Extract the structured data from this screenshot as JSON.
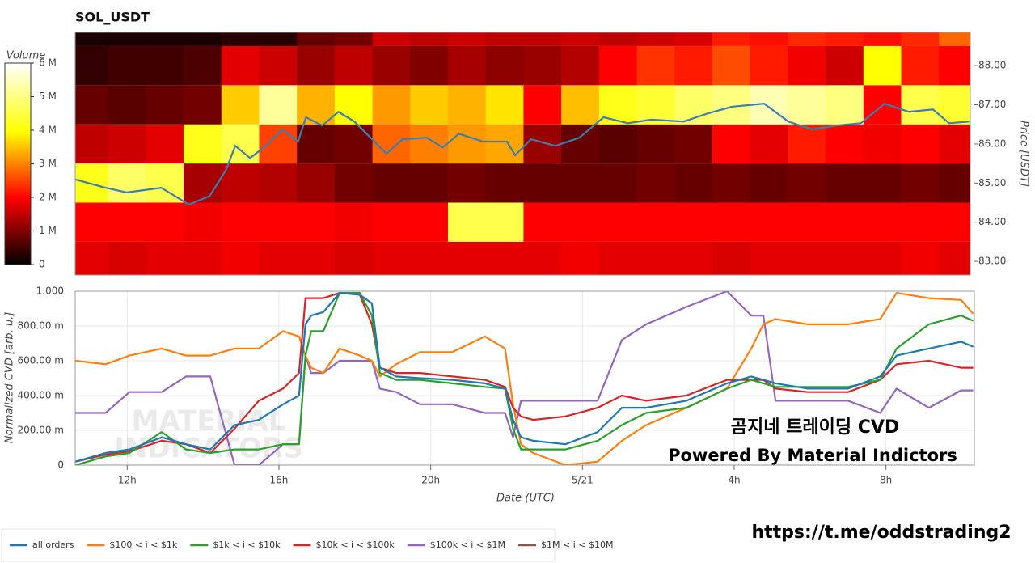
{
  "chart_data": [
    {
      "type": "heatmap",
      "title": "SOL_USDT",
      "colormap": "hot",
      "x_edges": [
        10.5,
        11.5,
        12.5,
        13.5,
        14.5,
        15.5,
        16.5,
        17.5,
        18.5,
        19.5,
        20.5,
        21.5,
        22.5,
        23.5,
        24.5,
        25.5,
        26.5,
        27.5,
        28.5,
        29.5,
        30.5,
        31.5,
        32.5,
        33.5,
        34.5
      ],
      "y_edges": [
        82.5,
        83.5,
        84.5,
        85.5,
        86.5,
        87.5,
        88.5,
        89.5
      ],
      "z": [
        [
          1.8,
          1.7,
          1.8,
          1.8,
          1.9,
          1.8,
          1.8,
          1.7,
          1.8,
          1.8,
          1.8,
          1.8,
          1.8,
          1.9,
          1.8,
          1.8,
          1.8,
          1.7,
          1.8,
          1.8,
          1.8,
          1.8,
          1.9,
          1.8
        ],
        [
          2.0,
          2.0,
          2.0,
          1.9,
          2.0,
          2.0,
          2.0,
          1.9,
          2.0,
          2.0,
          4.6,
          4.6,
          2.0,
          2.0,
          2.0,
          2.0,
          2.0,
          2.0,
          2.0,
          2.0,
          2.0,
          2.0,
          2.0,
          2.0
        ],
        [
          4.2,
          4.8,
          4.6,
          1.3,
          1.5,
          1.4,
          1.2,
          0.9,
          0.8,
          0.8,
          0.9,
          0.8,
          0.8,
          0.8,
          0.8,
          0.9,
          0.8,
          0.9,
          0.8,
          0.9,
          0.8,
          0.8,
          0.9,
          0.8
        ],
        [
          1.5,
          1.6,
          1.8,
          4.2,
          4.6,
          2.5,
          0.8,
          0.9,
          2.8,
          3.0,
          3.2,
          3.3,
          1.2,
          0.8,
          0.7,
          0.8,
          0.9,
          2.0,
          1.8,
          2.2,
          2.0,
          1.9,
          2.0,
          1.8
        ],
        [
          0.8,
          0.7,
          0.8,
          0.9,
          3.6,
          5.2,
          3.4,
          4.0,
          3.2,
          3.6,
          3.4,
          3.8,
          2.0,
          3.5,
          4.2,
          4.4,
          4.8,
          5.0,
          5.4,
          5.2,
          5.0,
          2.0,
          4.6,
          4.4
        ],
        [
          0.4,
          0.5,
          0.5,
          0.6,
          1.8,
          1.6,
          1.2,
          1.5,
          1.2,
          1.0,
          1.3,
          1.1,
          1.2,
          1.4,
          2.0,
          2.4,
          2.2,
          2.6,
          2.2,
          1.9,
          1.6,
          4.0,
          2.2,
          2.0
        ],
        [
          0.2,
          0.2,
          0.2,
          0.2,
          0.3,
          0.3,
          0.8,
          0.9,
          1.6,
          1.5,
          1.6,
          1.5,
          1.5,
          1.6,
          1.5,
          1.6,
          1.7,
          2.2,
          2.1,
          2.3,
          2.2,
          2.1,
          2.3,
          2.8
        ]
      ],
      "colorbar": {
        "title": "Volume",
        "lim": [
          0,
          6
        ],
        "ticks": [
          0,
          {
            "value": 1,
            "label": "1 M"
          },
          {
            "value": 2,
            "label": "2 M"
          },
          {
            "value": 3,
            "label": "3 M"
          },
          {
            "value": 4,
            "label": "4 M"
          },
          {
            "value": 5,
            "label": "5 M"
          },
          {
            "value": 6,
            "label": "6 M"
          }
        ]
      },
      "xlim": [
        10.63,
        34.33
      ],
      "ylim": [
        82.65,
        88.85
      ],
      "yticks": [
        {
          "value": 83,
          "label": "83.00"
        },
        {
          "value": 84,
          "label": "84.00"
        },
        {
          "value": 85,
          "label": "85.00"
        },
        {
          "value": 86,
          "label": "86.00"
        },
        {
          "value": 87,
          "label": "87.00"
        },
        {
          "value": 88,
          "label": "88.00"
        }
      ],
      "y_label": "Price [USDT]",
      "series": [
        {
          "color": "#3a7fb0",
          "x": [
            10.64,
            11.43,
            12,
            12.91,
            13.64,
            14.19,
            14.62,
            14.87,
            15.26,
            15.68,
            16.11,
            16.53,
            16.74,
            17.17,
            17.6,
            18.02,
            18.45,
            18.87,
            19.3,
            19.94,
            20.36,
            20.79,
            21.43,
            22.06,
            22.28,
            22.7,
            23.34,
            23.98,
            24.62,
            25.26,
            25.89,
            26.74,
            27.38,
            28.02,
            28.87,
            29.51,
            30.15,
            30.79,
            31.43,
            32.06,
            32.7,
            33.34,
            33.77,
            34.3
          ],
          "values": [
            85.09,
            84.88,
            84.76,
            84.88,
            84.45,
            84.67,
            85.33,
            85.95,
            85.64,
            85.95,
            86.37,
            86.06,
            86.68,
            86.47,
            86.82,
            86.57,
            86.16,
            85.75,
            86.12,
            86.16,
            85.91,
            86.26,
            86.06,
            86.06,
            85.71,
            86.12,
            85.95,
            86.16,
            86.68,
            86.53,
            86.62,
            86.57,
            86.78,
            86.95,
            87.03,
            86.57,
            86.37,
            86.47,
            86.53,
            87.03,
            86.82,
            86.88,
            86.53,
            86.57
          ]
        }
      ]
    },
    {
      "type": "line",
      "x": [
        10.64,
        11.43,
        12.06,
        12.91,
        13.55,
        14.19,
        14.83,
        15.47,
        16.11,
        16.53,
        16.7,
        16.85,
        17.17,
        17.6,
        18.13,
        18.45,
        18.66,
        19.09,
        19.72,
        20.57,
        21.43,
        21.96,
        22.17,
        22.38,
        22.7,
        23.55,
        24.4,
        25.04,
        25.68,
        26.74,
        27.81,
        28.45,
        28.77,
        29.09,
        29.94,
        31,
        31.85,
        32.28,
        33.13,
        33.98,
        34.3
      ],
      "xlim": [
        10.63,
        34.33
      ],
      "xticks": [
        {
          "value": 12,
          "label": "12h"
        },
        {
          "value": 16,
          "label": "16h"
        },
        {
          "value": 20,
          "label": "20h"
        },
        {
          "value": 24,
          "label": "5/21"
        },
        {
          "value": 28,
          "label": "4h"
        },
        {
          "value": 32,
          "label": "8h"
        }
      ],
      "ylim": [
        0,
        1
      ],
      "yticks": [
        0,
        {
          "value": 0.2,
          "label": "200.00 m"
        },
        {
          "value": 0.4,
          "label": "400.00 m"
        },
        {
          "value": 0.6,
          "label": "600.00 m"
        },
        {
          "value": 0.8,
          "label": "800.00 m"
        },
        {
          "value": 1,
          "label": "1.000"
        }
      ],
      "x_label": "Date (UTC)",
      "y_label": "Normalized CVD [arb. u.]",
      "grid": true,
      "series": [
        {
          "name": "all orders",
          "color": "#1f77b4",
          "values": [
            0.02,
            0.07,
            0.09,
            0.16,
            0.12,
            0.09,
            0.23,
            0.26,
            0.35,
            0.4,
            0.81,
            0.86,
            0.88,
            0.99,
            0.98,
            0.93,
            0.56,
            0.51,
            0.5,
            0.49,
            0.47,
            0.44,
            0.26,
            0.16,
            0.14,
            0.12,
            0.19,
            0.33,
            0.33,
            0.37,
            0.47,
            0.51,
            0.49,
            0.47,
            0.44,
            0.44,
            0.51,
            0.63,
            0.67,
            0.71,
            0.68
          ]
        },
        {
          "name": "$100 < i < $1k",
          "color": "#ff7f0e",
          "values": [
            0.6,
            0.58,
            0.63,
            0.67,
            0.63,
            0.63,
            0.67,
            0.67,
            0.77,
            0.74,
            0.63,
            0.56,
            0.53,
            0.67,
            0.63,
            0.6,
            0.51,
            0.58,
            0.65,
            0.65,
            0.74,
            0.67,
            0.35,
            0.12,
            0.07,
            0,
            0.02,
            0.14,
            0.23,
            0.33,
            0.44,
            0.67,
            0.81,
            0.84,
            0.81,
            0.81,
            0.84,
            0.99,
            0.96,
            0.95,
            0.87
          ]
        },
        {
          "name": "$1k < i < $10k",
          "color": "#2ca02c",
          "values": [
            0,
            0.05,
            0.07,
            0.19,
            0.09,
            0.07,
            0.09,
            0.09,
            0.12,
            0.12,
            0.63,
            0.77,
            0.77,
            0.99,
            0.99,
            0.86,
            0.53,
            0.49,
            0.49,
            0.47,
            0.45,
            0.44,
            0.21,
            0.09,
            0.09,
            0.09,
            0.14,
            0.23,
            0.3,
            0.33,
            0.44,
            0.49,
            0.47,
            0.45,
            0.45,
            0.45,
            0.49,
            0.67,
            0.81,
            0.86,
            0.83
          ]
        },
        {
          "name": "$10k < i < $100k",
          "color": "#d62728",
          "values": [
            0.02,
            0.06,
            0.08,
            0.14,
            0.12,
            0.07,
            0.21,
            0.37,
            0.44,
            0.53,
            0.96,
            0.96,
            0.96,
            0.99,
            0.98,
            0.81,
            0.56,
            0.53,
            0.53,
            0.51,
            0.49,
            0.45,
            0.33,
            0.28,
            0.26,
            0.28,
            0.33,
            0.4,
            0.37,
            0.4,
            0.49,
            0.49,
            0.49,
            0.44,
            0.42,
            0.42,
            0.49,
            0.58,
            0.6,
            0.56,
            0.56
          ]
        },
        {
          "name": "$100k < i < $1M",
          "color": "#9467bd",
          "values": [
            0.3,
            0.3,
            0.42,
            0.42,
            0.51,
            0.51,
            0,
            0,
            0.12,
            0.12,
            0.63,
            0.53,
            0.53,
            0.6,
            0.6,
            0.6,
            0.44,
            0.42,
            0.35,
            0.35,
            0.3,
            0.3,
            0.16,
            0.37,
            0.37,
            0.37,
            0.37,
            0.72,
            0.81,
            0.91,
            1.0,
            0.86,
            0.86,
            0.37,
            0.37,
            0.37,
            0.3,
            0.44,
            0.33,
            0.43,
            0.43
          ]
        },
        {
          "name": "$1M < i < $10M",
          "color": "#8c564b",
          "values": [
            null,
            null,
            null,
            null,
            null,
            null,
            null,
            null,
            null,
            null,
            null,
            null,
            null,
            null,
            null,
            null,
            null,
            null,
            null,
            null,
            null,
            null,
            null,
            null,
            null,
            null,
            null,
            null,
            null,
            null,
            null,
            null,
            null,
            null,
            null,
            null,
            null,
            null,
            null,
            null,
            null
          ]
        }
      ],
      "annotations": [
        "곰지네 트레이딩 CVD",
        "Powered By Material Indictors"
      ],
      "watermark": [
        "MATERIAL",
        "INDICATORS"
      ]
    }
  ],
  "link": "https://t.me/oddstrading2"
}
